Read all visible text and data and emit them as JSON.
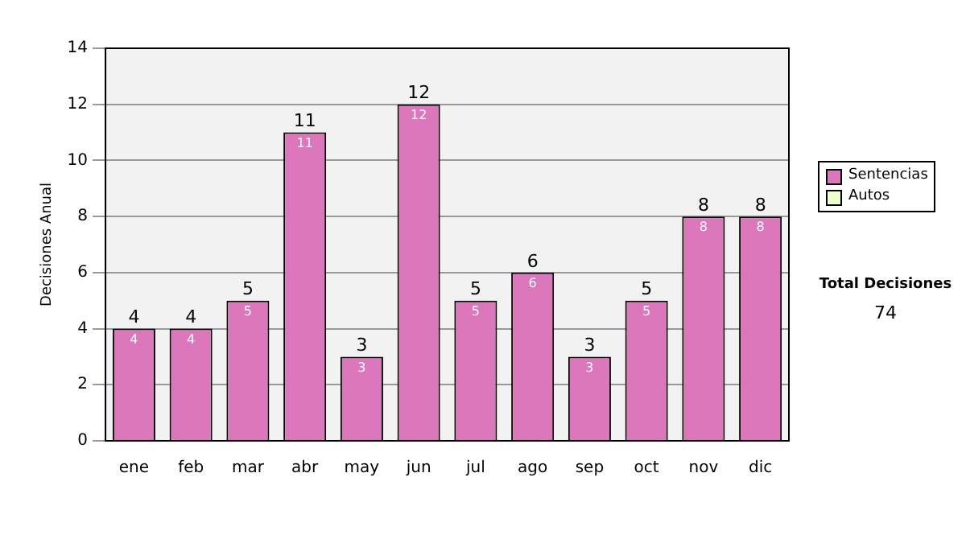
{
  "chart_data": {
    "type": "bar",
    "stacked": true,
    "ylabel": "Decisiones Anual",
    "categories": [
      "ene",
      "feb",
      "mar",
      "abr",
      "may",
      "jun",
      "jul",
      "ago",
      "sep",
      "oct",
      "nov",
      "dic"
    ],
    "series": [
      {
        "name": "Sentencias",
        "color": "#dd77bb",
        "values": [
          4,
          4,
          5,
          11,
          3,
          12,
          5,
          6,
          3,
          5,
          8,
          8
        ],
        "value_labels": [
          "4",
          "4",
          "5",
          "11",
          "3",
          "12",
          "5",
          "6",
          "3",
          "5",
          "8",
          "8"
        ]
      },
      {
        "name": "Autos",
        "color": "#eeffcc",
        "values": [
          0,
          0,
          0,
          0,
          0,
          0,
          0,
          0,
          0,
          0,
          0,
          0
        ]
      }
    ],
    "totals": [
      "4",
      "4",
      "5",
      "11",
      "3",
      "12",
      "5",
      "6",
      "3",
      "5",
      "8",
      "8"
    ],
    "ylim": [
      0,
      14
    ],
    "yticks": [
      0,
      2,
      4,
      6,
      8,
      10,
      12,
      14
    ],
    "grid": "y",
    "legend": "right",
    "annotations": [
      "Total Decisiones",
      "74"
    ]
  }
}
